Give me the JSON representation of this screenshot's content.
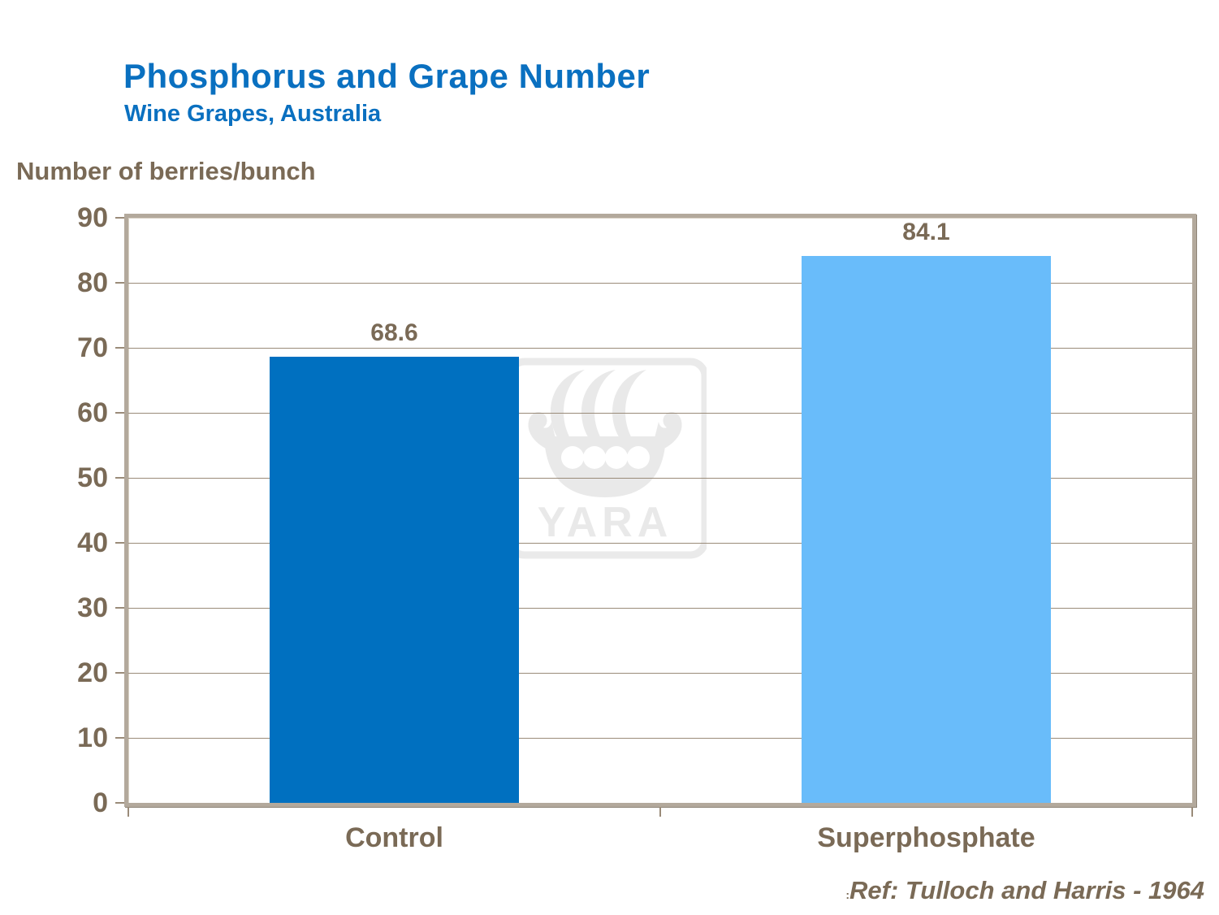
{
  "header": {
    "title": "Phosphorus and Grape Number",
    "subtitle": "Wine Grapes, Australia"
  },
  "footer": {
    "ref_colon": ":",
    "reference": "Ref: Tulloch and Harris - 1964"
  },
  "watermark": {
    "text": "YARA"
  },
  "colors": {
    "title_blue": "#0a70c0",
    "text_brown": "#7a6a56",
    "frame_tan": "#b3a99c",
    "gridline": "#9a8b79",
    "bar_control": "#0070C0",
    "bar_superphosphate": "#69BCFA",
    "watermark_gray": "#eaeaea"
  },
  "chart_data": {
    "type": "bar",
    "title": "Phosphorus and Grape Number",
    "subtitle": "Wine Grapes, Australia",
    "xlabel": "",
    "ylabel": "Number of berries/bunch",
    "categories": [
      "Control",
      "Superphosphate"
    ],
    "values": [
      68.6,
      84.1
    ],
    "value_labels": [
      "68.6",
      "84.1"
    ],
    "bar_colors": [
      "#0070C0",
      "#69BCFA"
    ],
    "ylim": [
      0,
      90
    ],
    "yticks": [
      0,
      10,
      20,
      30,
      40,
      50,
      60,
      70,
      80,
      90
    ],
    "grid": true,
    "legend": false,
    "watermark": "YARA",
    "reference": "Ref: Tulloch and Harris - 1964"
  }
}
